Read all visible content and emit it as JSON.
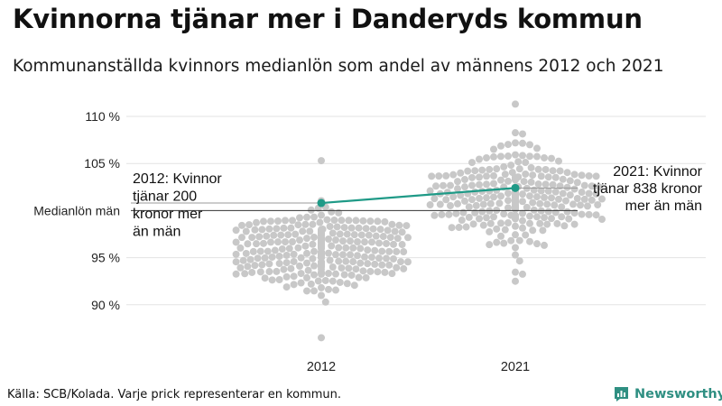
{
  "title": "Kvinnorna tjänar mer i Danderyds kommun",
  "subtitle": "Kommunanställda kvinnors medianlön som andel av männens 2012 och 2021",
  "source": "Källa: SCB/Kolada. Varje prick representerar en kommun.",
  "brand": {
    "name": "Newsworthy",
    "logo_icon": "newsworthy-chart-icon"
  },
  "colors": {
    "dots": "#c8c8c8",
    "highlight": "#1f9a87",
    "grid": "#e3e3e3",
    "reference": "#333333"
  },
  "chart_data": {
    "type": "scatter",
    "subtype": "beeswarm",
    "categories": [
      "2012",
      "2021"
    ],
    "y_ticks": [
      {
        "value": 90,
        "label": "90 %"
      },
      {
        "value": 95,
        "label": "95 %"
      },
      {
        "value": 105,
        "label": "105 %"
      },
      {
        "value": 110,
        "label": "110 %"
      }
    ],
    "ylim": [
      86,
      112
    ],
    "reference_line": {
      "value": 100,
      "label": "Medianlön män"
    },
    "grid": true,
    "highlight": {
      "values": [
        100.8,
        102.4
      ],
      "labels": [
        [
          "2012: Kvinnor",
          "tjänar 200",
          "kronor mer",
          "än män"
        ],
        [
          "2021: Kvinnor",
          "tjänar 838 kronor",
          "mer än män"
        ]
      ]
    },
    "distributions": [
      {
        "category": "2012",
        "n": 290,
        "center": 95.8,
        "sd": 2.1,
        "min": 86.5,
        "max": 105.3
      },
      {
        "category": "2021",
        "n": 290,
        "center": 101.6,
        "sd": 2.4,
        "min": 92.5,
        "max": 111.3
      }
    ]
  }
}
